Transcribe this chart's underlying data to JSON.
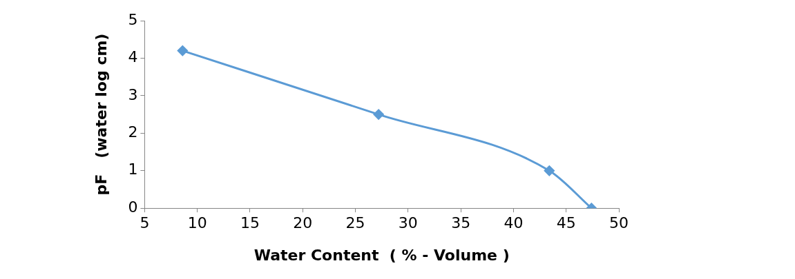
{
  "chart_data": {
    "type": "line",
    "xlabel": "Water Content  ( % - Volume )",
    "ylabel": "pF   (water log cm)",
    "x": [
      8.6,
      27.2,
      43.4,
      47.4
    ],
    "series": [
      {
        "color": "#5b9bd5",
        "values": [
          4.2,
          2.5,
          1,
          0
        ]
      }
    ],
    "xlim": [
      5,
      50
    ],
    "xticks": [
      5,
      10,
      15,
      20,
      25,
      30,
      35,
      40,
      45,
      50
    ],
    "ylim": [
      0,
      5
    ],
    "yticks": [
      0,
      1,
      2,
      3,
      4,
      5
    ],
    "grid": false,
    "legend": false,
    "marker": "diamond",
    "line_style": "solid"
  }
}
